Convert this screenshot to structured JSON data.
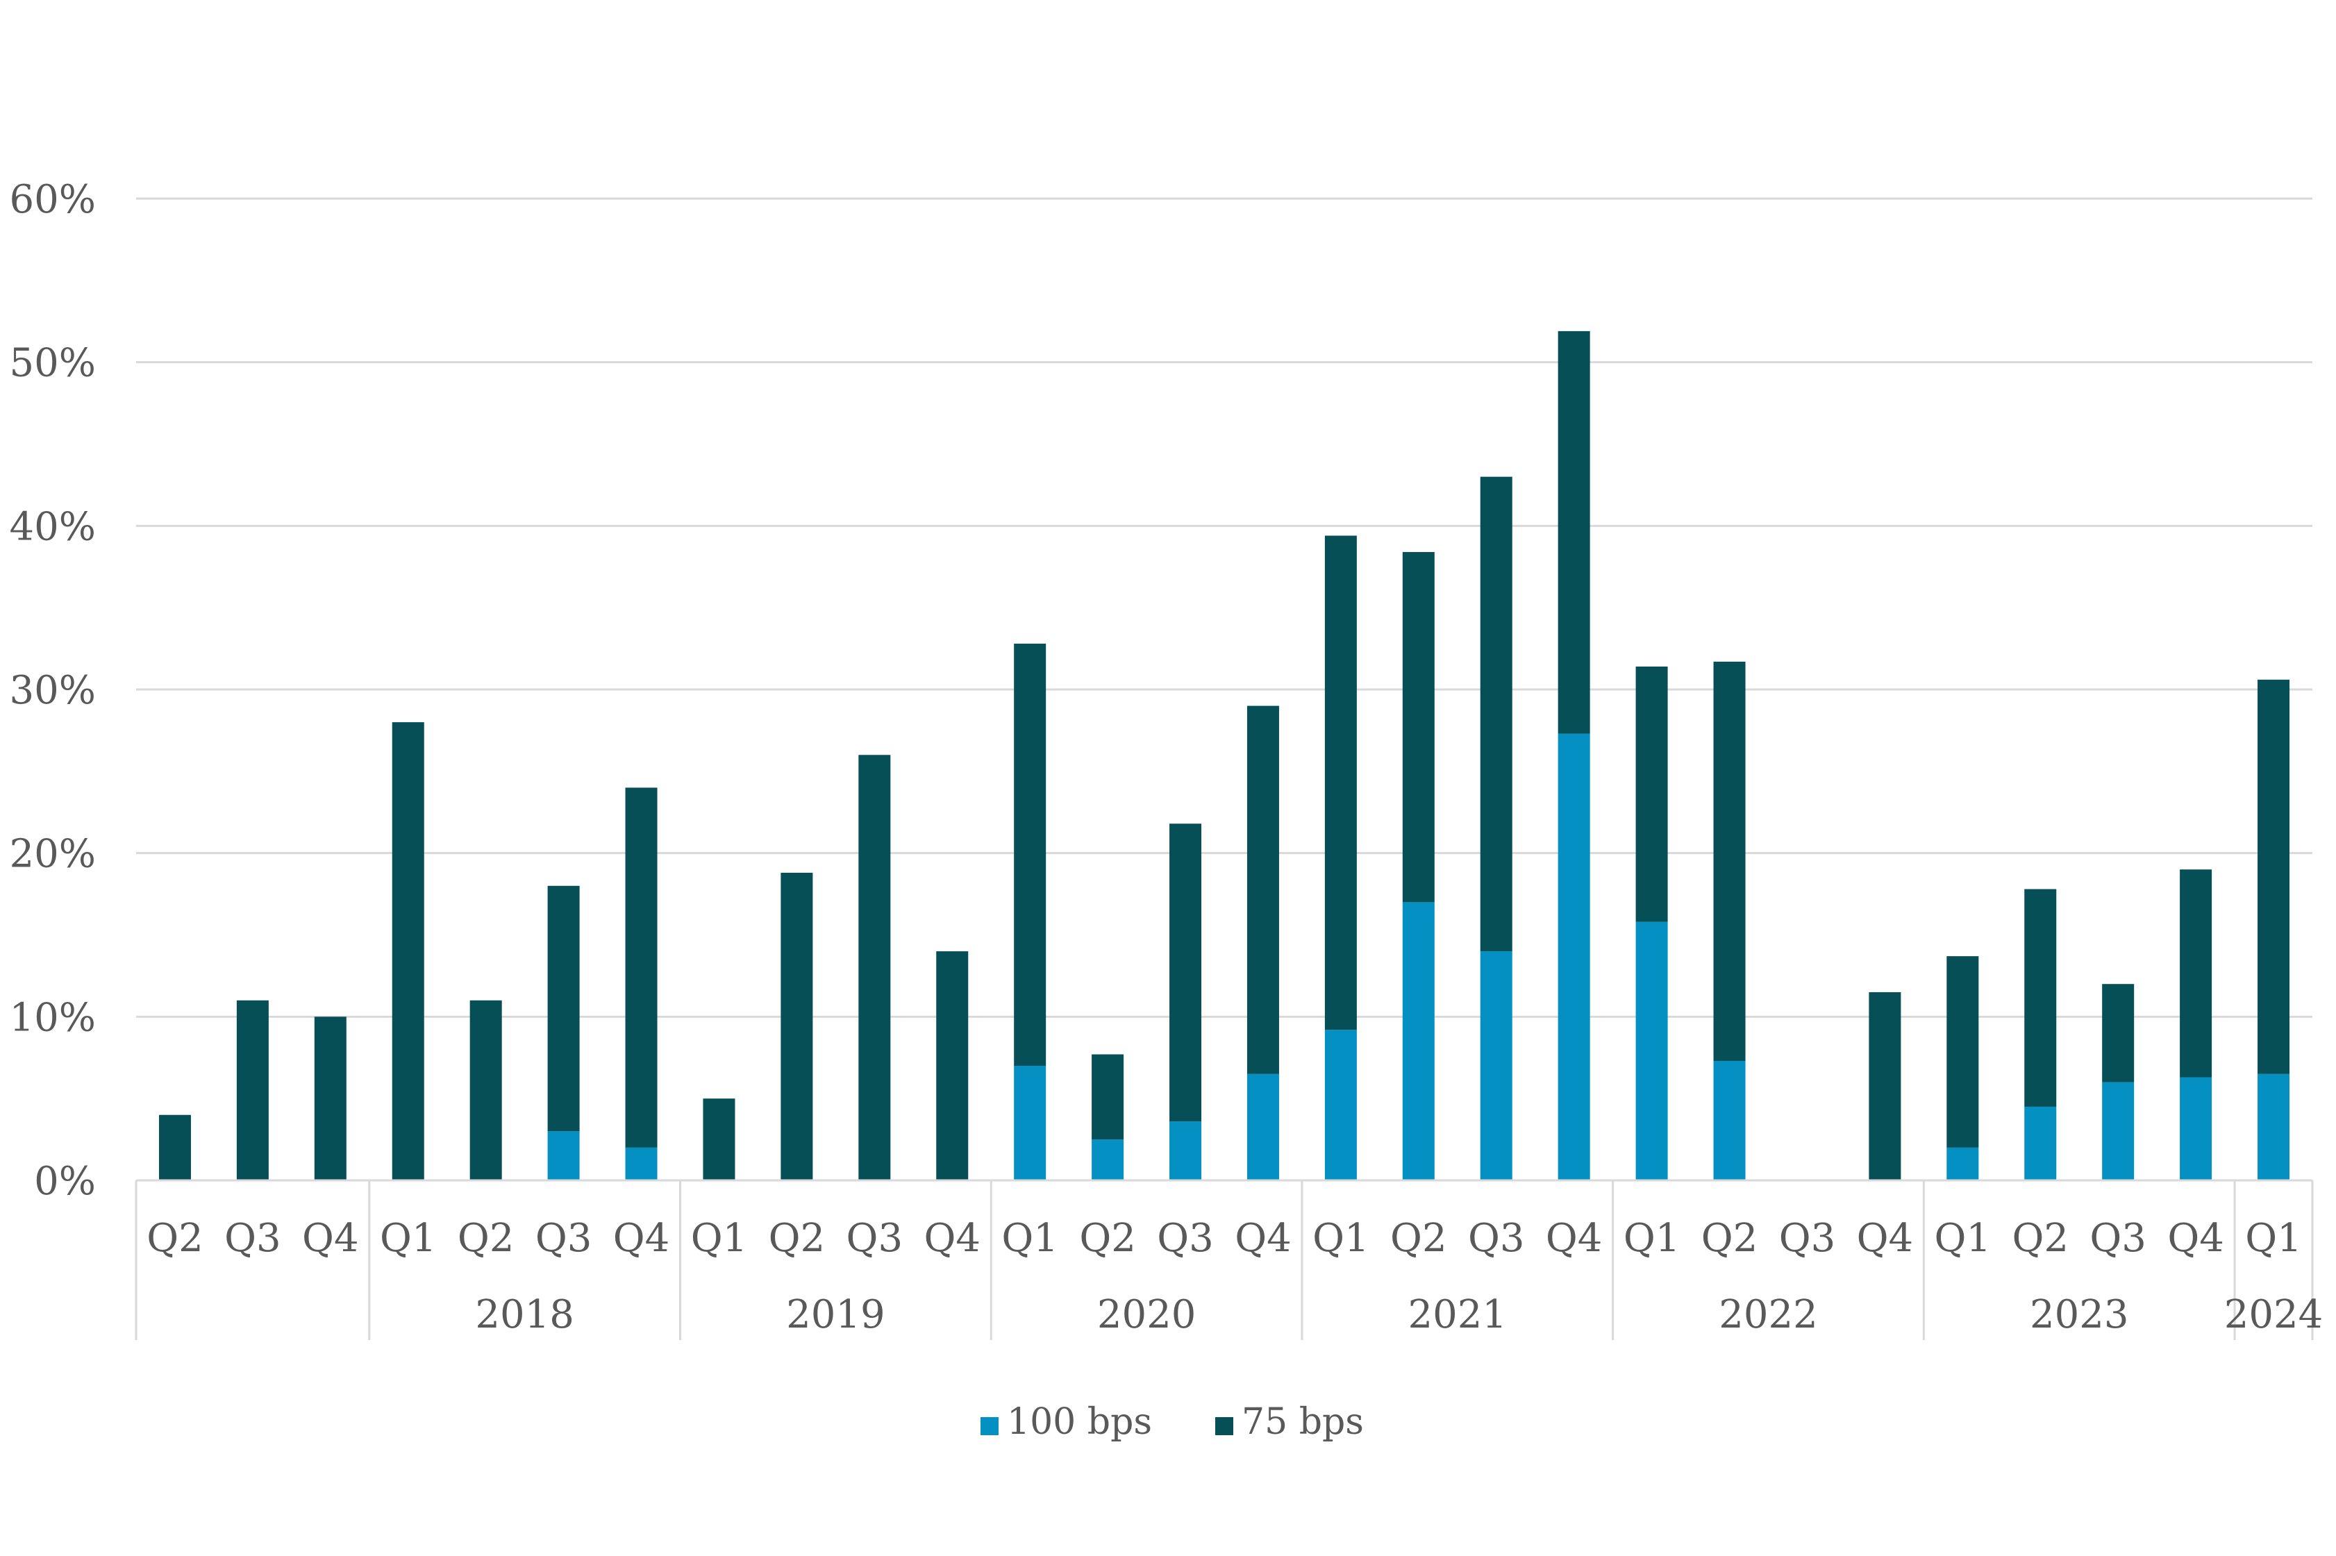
{
  "chart_data": {
    "type": "bar",
    "stacked": true,
    "categories": [
      "Q2",
      "Q3",
      "Q4",
      "Q1",
      "Q2",
      "Q3",
      "Q4",
      "Q1",
      "Q2",
      "Q3",
      "Q4",
      "Q1",
      "Q2",
      "Q3",
      "Q4",
      "Q1",
      "Q2",
      "Q3",
      "Q4",
      "Q1",
      "Q2",
      "Q3",
      "Q4",
      "Q1",
      "Q2",
      "Q3",
      "Q4",
      "Q1"
    ],
    "year_groups": [
      {
        "label": "",
        "start": 0,
        "count": 3
      },
      {
        "label": "2018",
        "start": 3,
        "count": 4
      },
      {
        "label": "2019",
        "start": 7,
        "count": 4
      },
      {
        "label": "2020",
        "start": 11,
        "count": 4
      },
      {
        "label": "2021",
        "start": 15,
        "count": 4
      },
      {
        "label": "2022",
        "start": 19,
        "count": 4
      },
      {
        "label": "2023",
        "start": 23,
        "count": 4
      },
      {
        "label": "2024",
        "start": 27,
        "count": 1
      }
    ],
    "series": [
      {
        "name": "100 bps",
        "color": "#0490c2",
        "values": [
          0,
          0,
          0,
          0,
          0,
          3,
          2,
          0,
          0,
          0,
          0,
          7,
          2.5,
          3.6,
          6.5,
          9.2,
          17,
          14,
          27.3,
          15.8,
          7.3,
          0,
          0,
          2,
          4.5,
          6,
          6.3,
          6.5
        ]
      },
      {
        "name": "75 bps",
        "color": "#074f57",
        "values": [
          4,
          11,
          10,
          28,
          11,
          15,
          22,
          5,
          18.8,
          26,
          14,
          25.8,
          5.2,
          18.2,
          22.5,
          30.2,
          21.4,
          29,
          24.6,
          15.6,
          24.4,
          0,
          11.5,
          11.7,
          13.3,
          6,
          12.7,
          24.1
        ]
      }
    ],
    "y_ticks": [
      "0%",
      "10%",
      "20%",
      "30%",
      "40%",
      "50%",
      "60%"
    ],
    "ylim": [
      0,
      60
    ],
    "grid": true,
    "legend_position": "bottom"
  }
}
